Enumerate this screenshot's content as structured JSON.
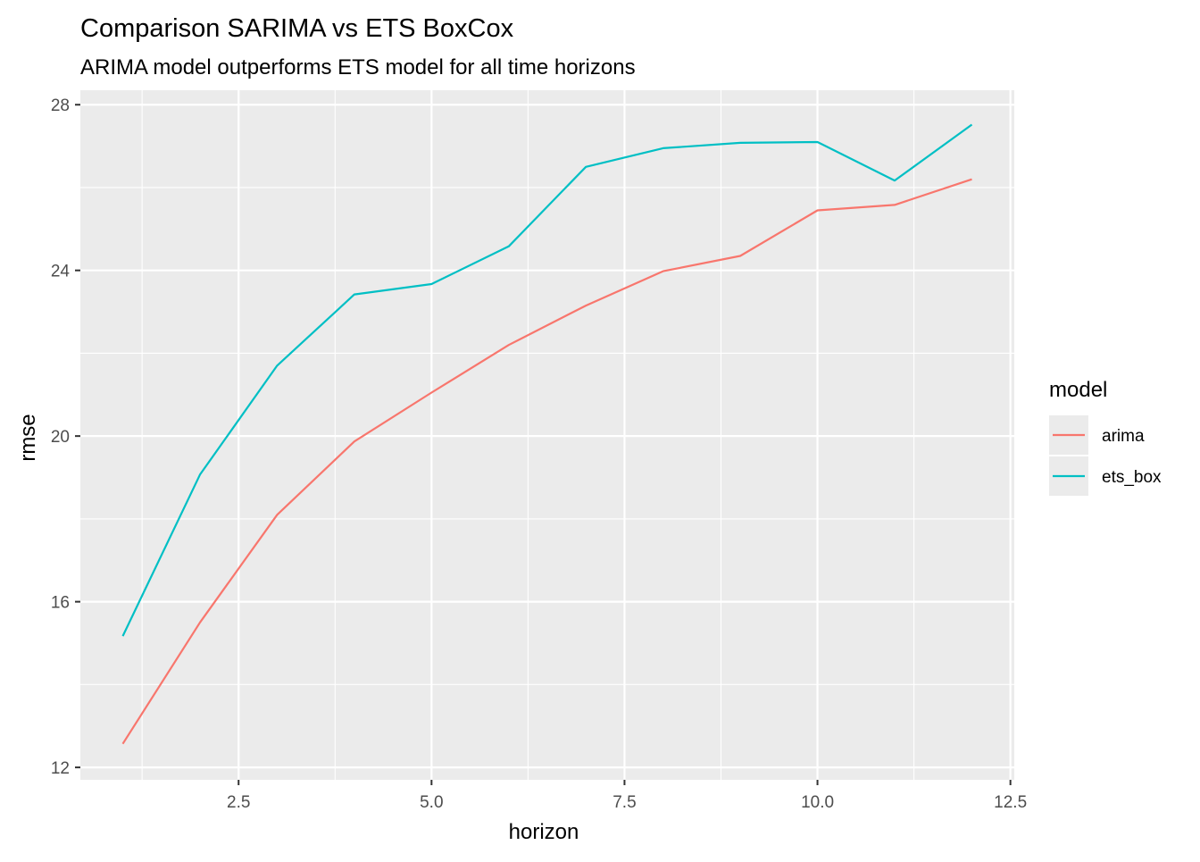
{
  "chart_data": {
    "type": "line",
    "title": "Comparison SARIMA vs ETS BoxCox",
    "subtitle": "ARIMA model outperforms ETS model for all time horizons",
    "xlabel": "horizon",
    "ylabel": "rmse",
    "xlim": [
      0.45,
      12.55
    ],
    "ylim": [
      11.7,
      28.35
    ],
    "x_ticks": [
      2.5,
      5.0,
      7.5,
      10.0,
      12.5
    ],
    "x_tick_labels": [
      "2.5",
      "5.0",
      "7.5",
      "10.0",
      "12.5"
    ],
    "y_ticks": [
      12,
      16,
      20,
      24,
      28
    ],
    "y_tick_labels": [
      "12",
      "16",
      "20",
      "24",
      "28"
    ],
    "grid": true,
    "legend": {
      "title": "model",
      "position": "right"
    },
    "x": [
      1,
      2,
      3,
      4,
      5,
      6,
      7,
      8,
      9,
      10,
      11,
      12
    ],
    "series": [
      {
        "name": "arima",
        "color": "#F8766D",
        "values": [
          12.57,
          15.5,
          18.1,
          19.87,
          21.05,
          22.2,
          23.15,
          23.98,
          24.35,
          25.45,
          25.58,
          26.2
        ]
      },
      {
        "name": "ets_box",
        "color": "#00BFC4",
        "values": [
          15.17,
          19.07,
          21.7,
          23.42,
          23.67,
          24.58,
          26.5,
          26.95,
          27.08,
          27.1,
          26.17,
          27.52
        ]
      }
    ],
    "panel_background": "#EBEBEB",
    "grid_color": "#FFFFFF"
  }
}
